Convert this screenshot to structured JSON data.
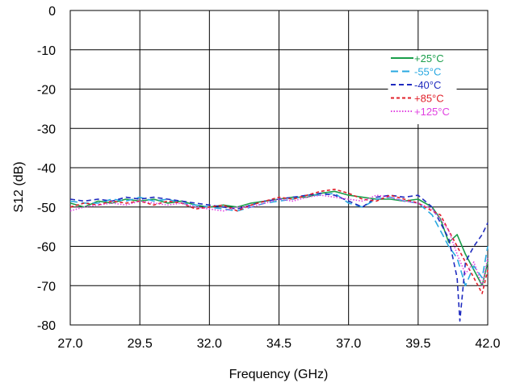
{
  "chart_data": {
    "type": "line",
    "title": "",
    "xlabel": "Frequency (GHz)",
    "ylabel": "S12 (dB)",
    "xlim": [
      27.0,
      42.0
    ],
    "ylim": [
      -80,
      0
    ],
    "xticks": [
      "27.0",
      "29.5",
      "32.0",
      "34.5",
      "37.0",
      "39.5",
      "42.0"
    ],
    "yticks": [
      "0",
      "-10",
      "-20",
      "-30",
      "-40",
      "-50",
      "-60",
      "-70",
      "-80"
    ],
    "grid": true,
    "legend_position": "top-right",
    "series": [
      {
        "name": "+25°C",
        "color": "#1a9e4a",
        "dash": "solid",
        "x": [
          27.0,
          27.5,
          28.0,
          28.5,
          29.0,
          29.5,
          30.0,
          30.5,
          31.0,
          31.5,
          32.0,
          32.5,
          33.0,
          33.5,
          34.0,
          34.5,
          35.0,
          35.5,
          36.0,
          36.5,
          37.0,
          37.5,
          38.0,
          38.5,
          39.0,
          39.5,
          40.0,
          40.3,
          40.6,
          40.9,
          41.2,
          41.5,
          41.8,
          42.0
        ],
        "y": [
          -49,
          -50,
          -48.5,
          -49,
          -48,
          -48.5,
          -48,
          -49,
          -48.5,
          -49.5,
          -50,
          -49.5,
          -50,
          -49,
          -48.5,
          -48,
          -47.5,
          -47.5,
          -46.5,
          -46,
          -47,
          -47.5,
          -48,
          -48,
          -48.5,
          -48,
          -50,
          -53,
          -59,
          -57,
          -62,
          -66,
          -70,
          -64
        ]
      },
      {
        "name": "-55°C",
        "color": "#29a8e0",
        "dash": "long",
        "x": [
          27.0,
          27.5,
          28.0,
          28.5,
          29.0,
          29.5,
          30.0,
          30.5,
          31.0,
          31.5,
          32.0,
          32.5,
          33.0,
          33.5,
          34.0,
          34.5,
          35.0,
          35.5,
          36.0,
          36.5,
          37.0,
          37.5,
          38.0,
          38.5,
          39.0,
          39.5,
          40.0,
          40.3,
          40.6,
          40.9,
          41.2,
          41.5,
          41.8,
          42.0
        ],
        "y": [
          -48.5,
          -49,
          -49,
          -48,
          -48.5,
          -47.5,
          -48.5,
          -48,
          -49,
          -49.5,
          -50,
          -50.5,
          -51,
          -50,
          -49,
          -48.5,
          -48,
          -47,
          -47,
          -46.5,
          -49,
          -50,
          -48,
          -47.5,
          -48.5,
          -49,
          -52,
          -56,
          -60,
          -63,
          -70,
          -65,
          -68,
          -60
        ]
      },
      {
        "name": "-40°C",
        "color": "#1f2bbf",
        "dash": "dashed",
        "x": [
          27.0,
          27.5,
          28.0,
          28.5,
          29.0,
          29.5,
          30.0,
          30.5,
          31.0,
          31.5,
          32.0,
          32.5,
          33.0,
          33.5,
          34.0,
          34.5,
          35.0,
          35.5,
          36.0,
          36.5,
          37.0,
          37.5,
          38.0,
          38.5,
          39.0,
          39.5,
          40.0,
          40.3,
          40.6,
          40.9,
          41.0,
          41.2,
          41.5,
          41.8,
          42.0
        ],
        "y": [
          -48,
          -48.5,
          -48,
          -48.5,
          -47.5,
          -48,
          -47.5,
          -48,
          -48.5,
          -49,
          -49.5,
          -50,
          -50.5,
          -49.5,
          -48.5,
          -48,
          -47.5,
          -47,
          -46.5,
          -47,
          -48.5,
          -50,
          -47.5,
          -47,
          -47.5,
          -47,
          -50,
          -54,
          -58,
          -68,
          -79,
          -64,
          -60,
          -57,
          -54
        ]
      },
      {
        "name": "+85°C",
        "color": "#e0202a",
        "dash": "short",
        "x": [
          27.0,
          27.5,
          28.0,
          28.5,
          29.0,
          29.5,
          30.0,
          30.5,
          31.0,
          31.5,
          32.0,
          32.5,
          33.0,
          33.5,
          34.0,
          34.5,
          35.0,
          35.5,
          36.0,
          36.5,
          37.0,
          37.5,
          38.0,
          38.5,
          39.0,
          39.5,
          40.0,
          40.3,
          40.6,
          40.9,
          41.2,
          41.5,
          41.8,
          42.0
        ],
        "y": [
          -50,
          -49,
          -49.5,
          -48.5,
          -49,
          -48.5,
          -49.5,
          -48.5,
          -49,
          -50.5,
          -50,
          -49.5,
          -51,
          -49.5,
          -48.5,
          -47.5,
          -48,
          -47,
          -46,
          -45.5,
          -46.5,
          -48,
          -48.5,
          -47,
          -48,
          -49,
          -51,
          -52,
          -56,
          -60,
          -64,
          -68,
          -72,
          -66
        ]
      },
      {
        "name": "+125°C",
        "color": "#e040e0",
        "dash": "dotted",
        "x": [
          27.0,
          27.5,
          28.0,
          28.5,
          29.0,
          29.5,
          30.0,
          30.5,
          31.0,
          31.5,
          32.0,
          32.5,
          33.0,
          33.5,
          34.0,
          34.5,
          35.0,
          35.5,
          36.0,
          36.5,
          37.0,
          37.5,
          38.0,
          38.5,
          39.0,
          39.5,
          40.0,
          40.3,
          40.6,
          40.9,
          41.2,
          41.5,
          41.8,
          42.0
        ],
        "y": [
          -51,
          -50,
          -49.5,
          -49,
          -49.5,
          -48.5,
          -49,
          -49.5,
          -49,
          -50,
          -50.5,
          -51,
          -50,
          -50,
          -49,
          -48,
          -48.5,
          -47.5,
          -47,
          -47.5,
          -48,
          -48.5,
          -47,
          -47.5,
          -48.5,
          -49,
          -50.5,
          -53,
          -56,
          -62,
          -67,
          -64,
          -70,
          -63
        ]
      }
    ]
  }
}
